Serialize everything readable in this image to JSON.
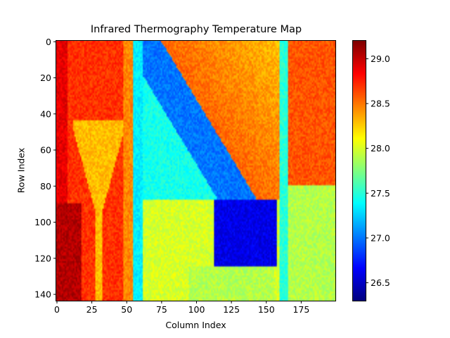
{
  "chart_data": {
    "type": "heatmap",
    "title": "Infrared Thermography Temperature Map",
    "xlabel": "Column Index",
    "ylabel": "Row Index",
    "colormap": "jet",
    "grid": false,
    "n_rows": 144,
    "n_cols": 200,
    "x_ticks": [
      0,
      25,
      50,
      75,
      100,
      125,
      150,
      175
    ],
    "y_ticks": [
      0,
      20,
      40,
      60,
      80,
      100,
      120,
      140
    ],
    "colorbar": {
      "min": 26.3,
      "max": 29.2,
      "ticks": [
        26.5,
        27.0,
        27.5,
        28.0,
        28.5,
        29.0
      ],
      "tick_labels": [
        "26.5",
        "27.0",
        "27.5",
        "28.0",
        "28.5",
        "29.0"
      ]
    },
    "regions": [
      {
        "name": "left-hot-band",
        "columns": [
          0,
          53
        ],
        "rows": [
          0,
          143
        ],
        "temperature": 28.7
      },
      {
        "name": "left-edge-very-hot",
        "columns": [
          0,
          18
        ],
        "rows": [
          90,
          143
        ],
        "temperature": 29.05
      },
      {
        "name": "triangle-inset",
        "columns": [
          12,
          52
        ],
        "rows": [
          44,
          143
        ],
        "temperature": 28.3
      },
      {
        "name": "center-cool-panel",
        "columns": [
          55,
          125
        ],
        "rows": [
          0,
          85
        ],
        "temperature": 27.45
      },
      {
        "name": "diagonal-cold-band",
        "columns": [
          75,
          150
        ],
        "rows": [
          0,
          95
        ],
        "temperature": 27.0
      },
      {
        "name": "lower-middle-warm",
        "columns": [
          60,
          160
        ],
        "rows": [
          85,
          143
        ],
        "temperature": 28.0
      },
      {
        "name": "cold-rectangle",
        "columns": [
          113,
          157
        ],
        "rows": [
          88,
          124
        ],
        "temperature": 26.6
      },
      {
        "name": "right-hot-region",
        "columns": [
          160,
          199
        ],
        "rows": [
          0,
          80
        ],
        "temperature": 28.6
      },
      {
        "name": "right-lower-warm",
        "columns": [
          160,
          199
        ],
        "rows": [
          80,
          143
        ],
        "temperature": 27.9
      }
    ]
  }
}
